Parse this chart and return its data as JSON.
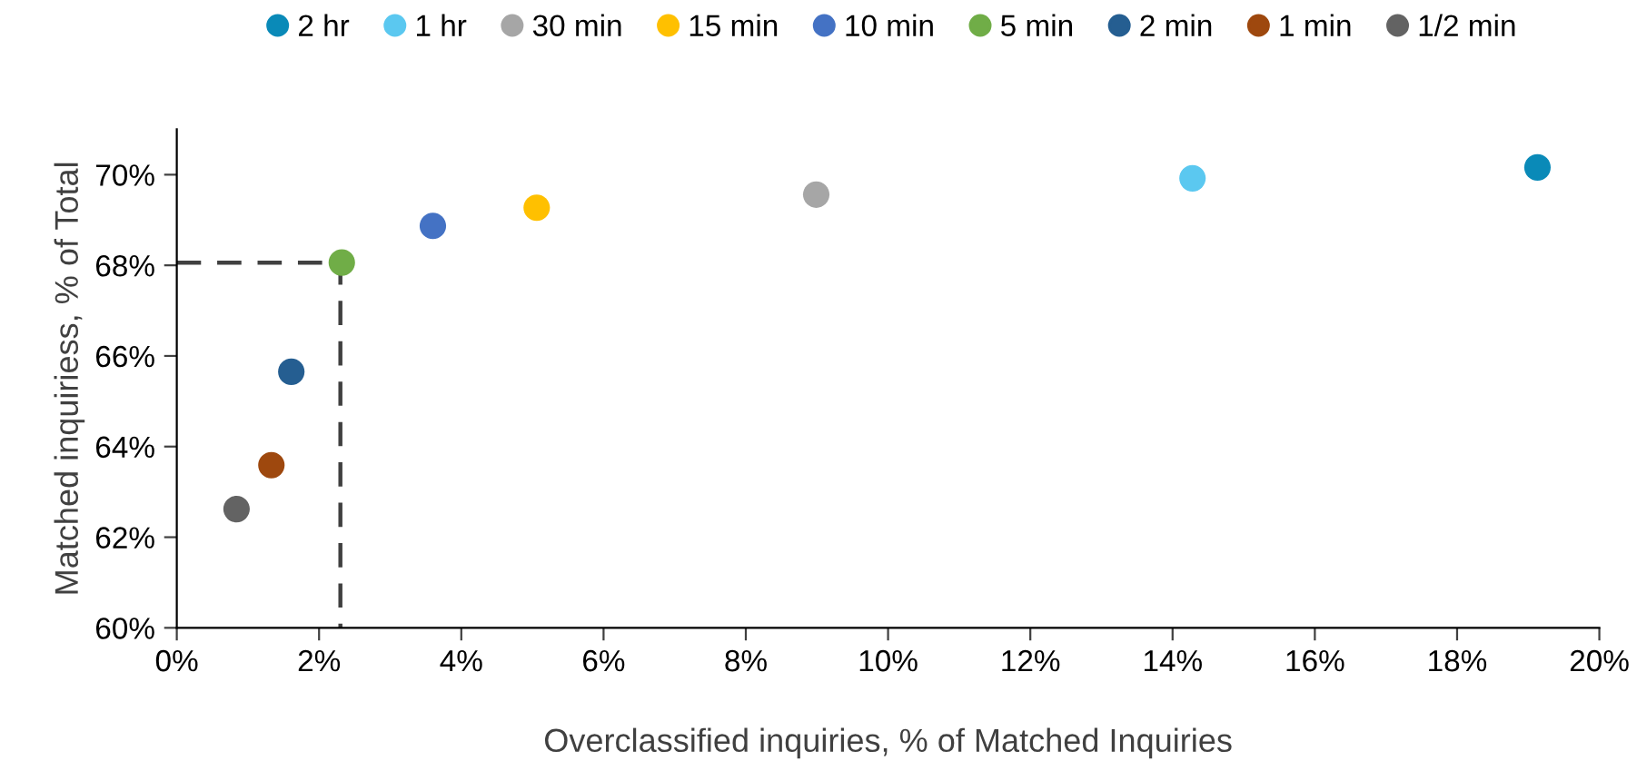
{
  "chart_data": {
    "type": "scatter",
    "xlabel": "Overclassified inquiries, % of Matched Inquiries",
    "ylabel": "Matched inquiriess, % of Total",
    "xlim": [
      0,
      20
    ],
    "ylim": [
      60,
      71
    ],
    "xticks": [
      {
        "value": 0,
        "label": "0%"
      },
      {
        "value": 2,
        "label": "2%"
      },
      {
        "value": 4,
        "label": "4%"
      },
      {
        "value": 6,
        "label": "6%"
      },
      {
        "value": 8,
        "label": "8%"
      },
      {
        "value": 10,
        "label": "10%"
      },
      {
        "value": 12,
        "label": "12%"
      },
      {
        "value": 14,
        "label": "14%"
      },
      {
        "value": 16,
        "label": "16%"
      },
      {
        "value": 18,
        "label": "18%"
      },
      {
        "value": 20,
        "label": "20%"
      }
    ],
    "yticks": [
      {
        "value": 60,
        "label": "60%"
      },
      {
        "value": 62,
        "label": "62%"
      },
      {
        "value": 64,
        "label": "64%"
      },
      {
        "value": 66,
        "label": "66%"
      },
      {
        "value": 68,
        "label": "68%"
      },
      {
        "value": 70,
        "label": "70%"
      }
    ],
    "grid": false,
    "legend": "top",
    "marker": "circle",
    "series": [
      {
        "name": "2 hr",
        "color": "#0a8ab8",
        "x": [
          19.13
        ],
        "values": [
          70.16
        ]
      },
      {
        "name": "1 hr",
        "color": "#5bc8f0",
        "x": [
          14.28
        ],
        "values": [
          69.92
        ]
      },
      {
        "name": "30 min",
        "color": "#a6a6a6",
        "x": [
          8.99
        ],
        "values": [
          69.56
        ]
      },
      {
        "name": "15 min",
        "color": "#ffc000",
        "x": [
          5.06
        ],
        "values": [
          69.27
        ]
      },
      {
        "name": "10 min",
        "color": "#4472c4",
        "x": [
          3.6
        ],
        "values": [
          68.87
        ]
      },
      {
        "name": "5 min",
        "color": "#70ad47",
        "x": [
          2.32
        ],
        "values": [
          68.06
        ]
      },
      {
        "name": "2 min",
        "color": "#255e91",
        "x": [
          1.61
        ],
        "values": [
          65.65
        ]
      },
      {
        "name": "1 min",
        "color": "#9e480e",
        "x": [
          1.33
        ],
        "values": [
          63.59
        ]
      },
      {
        "name": "1/2 min",
        "color": "#636363",
        "x": [
          0.84
        ],
        "values": [
          62.62
        ]
      },
      {
        "type": "line",
        "color": "#404040",
        "line_style": "dashed",
        "marker": "none",
        "x": [
          0,
          2.3,
          2.3
        ],
        "values": [
          68.06,
          68.06,
          60
        ]
      }
    ]
  }
}
